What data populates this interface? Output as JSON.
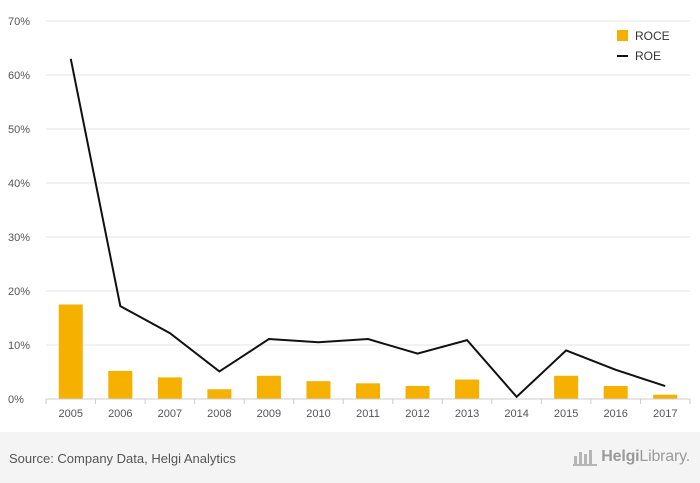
{
  "chart_data": {
    "type": "bar",
    "categories": [
      "2005",
      "2006",
      "2007",
      "2008",
      "2009",
      "2010",
      "2011",
      "2012",
      "2013",
      "2014",
      "2015",
      "2016",
      "2017"
    ],
    "series": [
      {
        "name": "ROCE",
        "type": "bar",
        "values": [
          17.5,
          5.2,
          4.0,
          1.8,
          4.3,
          3.3,
          2.9,
          2.4,
          3.6,
          0.0,
          4.3,
          2.4,
          0.8
        ]
      },
      {
        "name": "ROE",
        "type": "line",
        "values": [
          63.0,
          17.2,
          12.2,
          5.1,
          11.1,
          10.5,
          11.1,
          8.4,
          10.9,
          0.4,
          9.0,
          5.4,
          2.4
        ]
      }
    ],
    "ylim": [
      0,
      70
    ],
    "y_ticks": [
      "0%",
      "10%",
      "20%",
      "30%",
      "40%",
      "50%",
      "60%",
      "70%"
    ],
    "y_tick_values": [
      0,
      10,
      20,
      30,
      40,
      50,
      60,
      70
    ],
    "grid": true,
    "legend_position": "top-right",
    "colors": {
      "ROCE": "#f5b000",
      "ROE": "#111111"
    }
  },
  "footer": {
    "source": "Source: Company Data, Helgi Analytics",
    "brand_prefix": "Helgi",
    "brand_suffix": "Library."
  }
}
